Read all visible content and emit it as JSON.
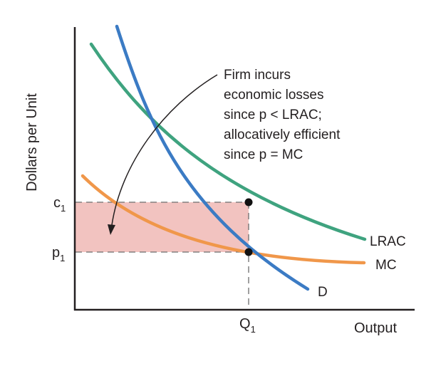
{
  "axes": {
    "y_title": "Dollars per Unit",
    "x_title": "Output"
  },
  "ticks": {
    "c1_main": "c",
    "c1_sub": "1",
    "p1_main": "p",
    "p1_sub": "1",
    "q1_main": "Q",
    "q1_sub": "1"
  },
  "curves": {
    "lrac": "LRAC",
    "mc": "MC",
    "d": "D"
  },
  "annotation": [
    "Firm incurs",
    "economic losses",
    "since p < LRAC;",
    "allocatively efficient",
    "since p = MC"
  ],
  "colors": {
    "lrac": "#3fa37f",
    "mc": "#f0974a",
    "d": "#3b7bc4",
    "loss_area": "#f2c3c0",
    "axis": "#231f20"
  }
}
